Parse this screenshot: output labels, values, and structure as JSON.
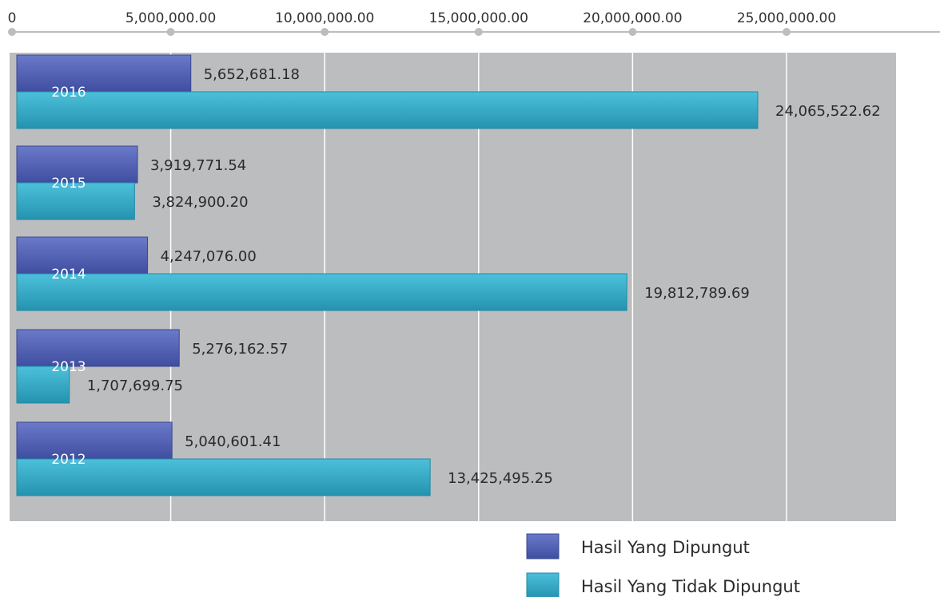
{
  "chart_data": {
    "type": "bar",
    "orientation": "horizontal",
    "axis_position": "top",
    "xlim": [
      0,
      25000000
    ],
    "x_ticks": [
      0,
      5000000,
      10000000,
      15000000,
      20000000,
      25000000
    ],
    "tick_labels": [
      "0",
      "5,000,000.00",
      "10,000,000.00",
      "15,000,000.00",
      "20,000,000.00",
      "25,000,000.00"
    ],
    "categories": [
      "2016",
      "2015",
      "2014",
      "2013",
      "2012"
    ],
    "series": [
      {
        "name": "Hasil Yang Dipungut",
        "color": "#4f5fb3",
        "values": [
          5652681.18,
          3919771.54,
          4247076.0,
          5276162.57,
          5040601.41
        ],
        "labels": [
          "5,652,681.18",
          "3,919,771.54",
          "4,247,076.00",
          "5,276,162.57",
          "5,040,601.41"
        ]
      },
      {
        "name": "Hasil Yang Tidak Dipungut",
        "color": "#36aecb",
        "values": [
          24065522.62,
          3824900.2,
          19812789.69,
          1707699.75,
          13425495.25
        ],
        "labels": [
          "24,065,522.62",
          "3,824,900.20",
          "19,812,789.69",
          "1,707,699.75",
          "13,425,495.25"
        ]
      }
    ],
    "plot_background": "#bcbdbf",
    "grid": true,
    "legend_position": "bottom-right"
  }
}
